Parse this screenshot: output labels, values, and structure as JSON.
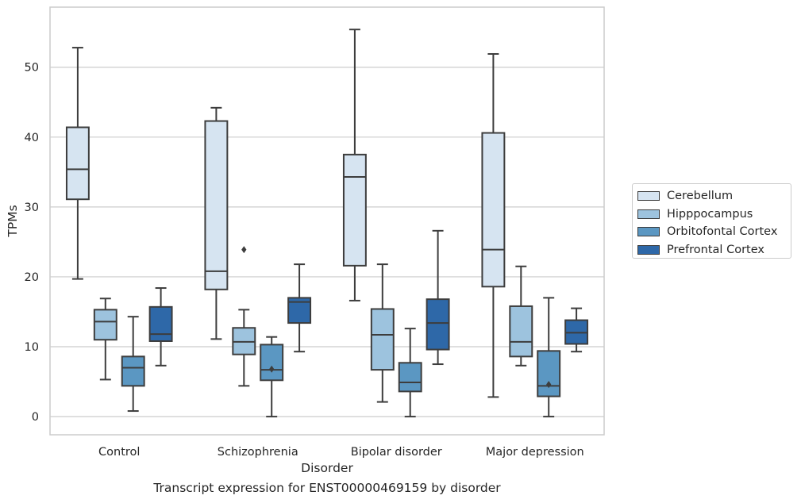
{
  "chart_data": {
    "type": "box",
    "title": "",
    "caption": "Transcript expression for ENST00000469159 by disorder",
    "xlabel": "Disorder",
    "ylabel": "TPMs",
    "ylim": [
      -2.6,
      58.6
    ],
    "yticks": [
      0,
      10,
      20,
      30,
      40,
      50
    ],
    "grid": "horizontal",
    "legend_placement": "right",
    "categories": [
      "Control",
      "Schizophrenia",
      "Bipolar disorder",
      "Major depression"
    ],
    "series": [
      {
        "name": "Cerebellum",
        "color": "#d6e4f1",
        "boxes": [
          {
            "whisker_low": 19.7,
            "q1": 31.1,
            "median": 35.4,
            "q3": 41.4,
            "whisker_high": 52.8,
            "outliers": []
          },
          {
            "whisker_low": 11.1,
            "q1": 18.2,
            "median": 20.8,
            "q3": 42.3,
            "whisker_high": 44.2,
            "outliers": []
          },
          {
            "whisker_low": 16.6,
            "q1": 21.6,
            "median": 34.3,
            "q3": 37.5,
            "whisker_high": 55.4,
            "outliers": []
          },
          {
            "whisker_low": 2.8,
            "q1": 18.6,
            "median": 23.9,
            "q3": 40.6,
            "whisker_high": 51.9,
            "outliers": []
          }
        ]
      },
      {
        "name": "Hipppocampus",
        "color": "#9dc3de",
        "boxes": [
          {
            "whisker_low": 5.3,
            "q1": 11.0,
            "median": 13.6,
            "q3": 15.3,
            "whisker_high": 16.9,
            "outliers": []
          },
          {
            "whisker_low": 4.4,
            "q1": 8.9,
            "median": 10.7,
            "q3": 12.7,
            "whisker_high": 15.3,
            "outliers": [
              23.9
            ]
          },
          {
            "whisker_low": 2.1,
            "q1": 6.7,
            "median": 11.7,
            "q3": 15.4,
            "whisker_high": 21.8,
            "outliers": []
          },
          {
            "whisker_low": 7.3,
            "q1": 8.6,
            "median": 10.7,
            "q3": 15.8,
            "whisker_high": 21.5,
            "outliers": []
          }
        ]
      },
      {
        "name": "Orbitofontal Cortex",
        "color": "#5b97c2",
        "boxes": [
          {
            "whisker_low": 0.8,
            "q1": 4.4,
            "median": 7.0,
            "q3": 8.6,
            "whisker_high": 14.3,
            "outliers": []
          },
          {
            "whisker_low": 0.0,
            "q1": 5.2,
            "median": 6.7,
            "q3": 10.3,
            "whisker_high": 11.4,
            "outliers": [
              6.8
            ]
          },
          {
            "whisker_low": 0.0,
            "q1": 3.6,
            "median": 4.9,
            "q3": 7.7,
            "whisker_high": 12.6,
            "outliers": []
          },
          {
            "whisker_low": 0.0,
            "q1": 2.9,
            "median": 4.4,
            "q3": 9.4,
            "whisker_high": 17.0,
            "outliers": [
              4.6
            ]
          }
        ]
      },
      {
        "name": "Prefrontal Cortex",
        "color": "#2e68a8",
        "boxes": [
          {
            "whisker_low": 7.3,
            "q1": 10.8,
            "median": 11.8,
            "q3": 15.7,
            "whisker_high": 18.4,
            "outliers": []
          },
          {
            "whisker_low": 9.3,
            "q1": 13.4,
            "median": 16.4,
            "q3": 17.0,
            "whisker_high": 21.8,
            "outliers": []
          },
          {
            "whisker_low": 7.5,
            "q1": 9.6,
            "median": 13.4,
            "q3": 16.8,
            "whisker_high": 26.6,
            "outliers": []
          },
          {
            "whisker_low": 9.3,
            "q1": 10.4,
            "median": 12.0,
            "q3": 13.8,
            "whisker_high": 15.5,
            "outliers": []
          }
        ]
      }
    ]
  }
}
